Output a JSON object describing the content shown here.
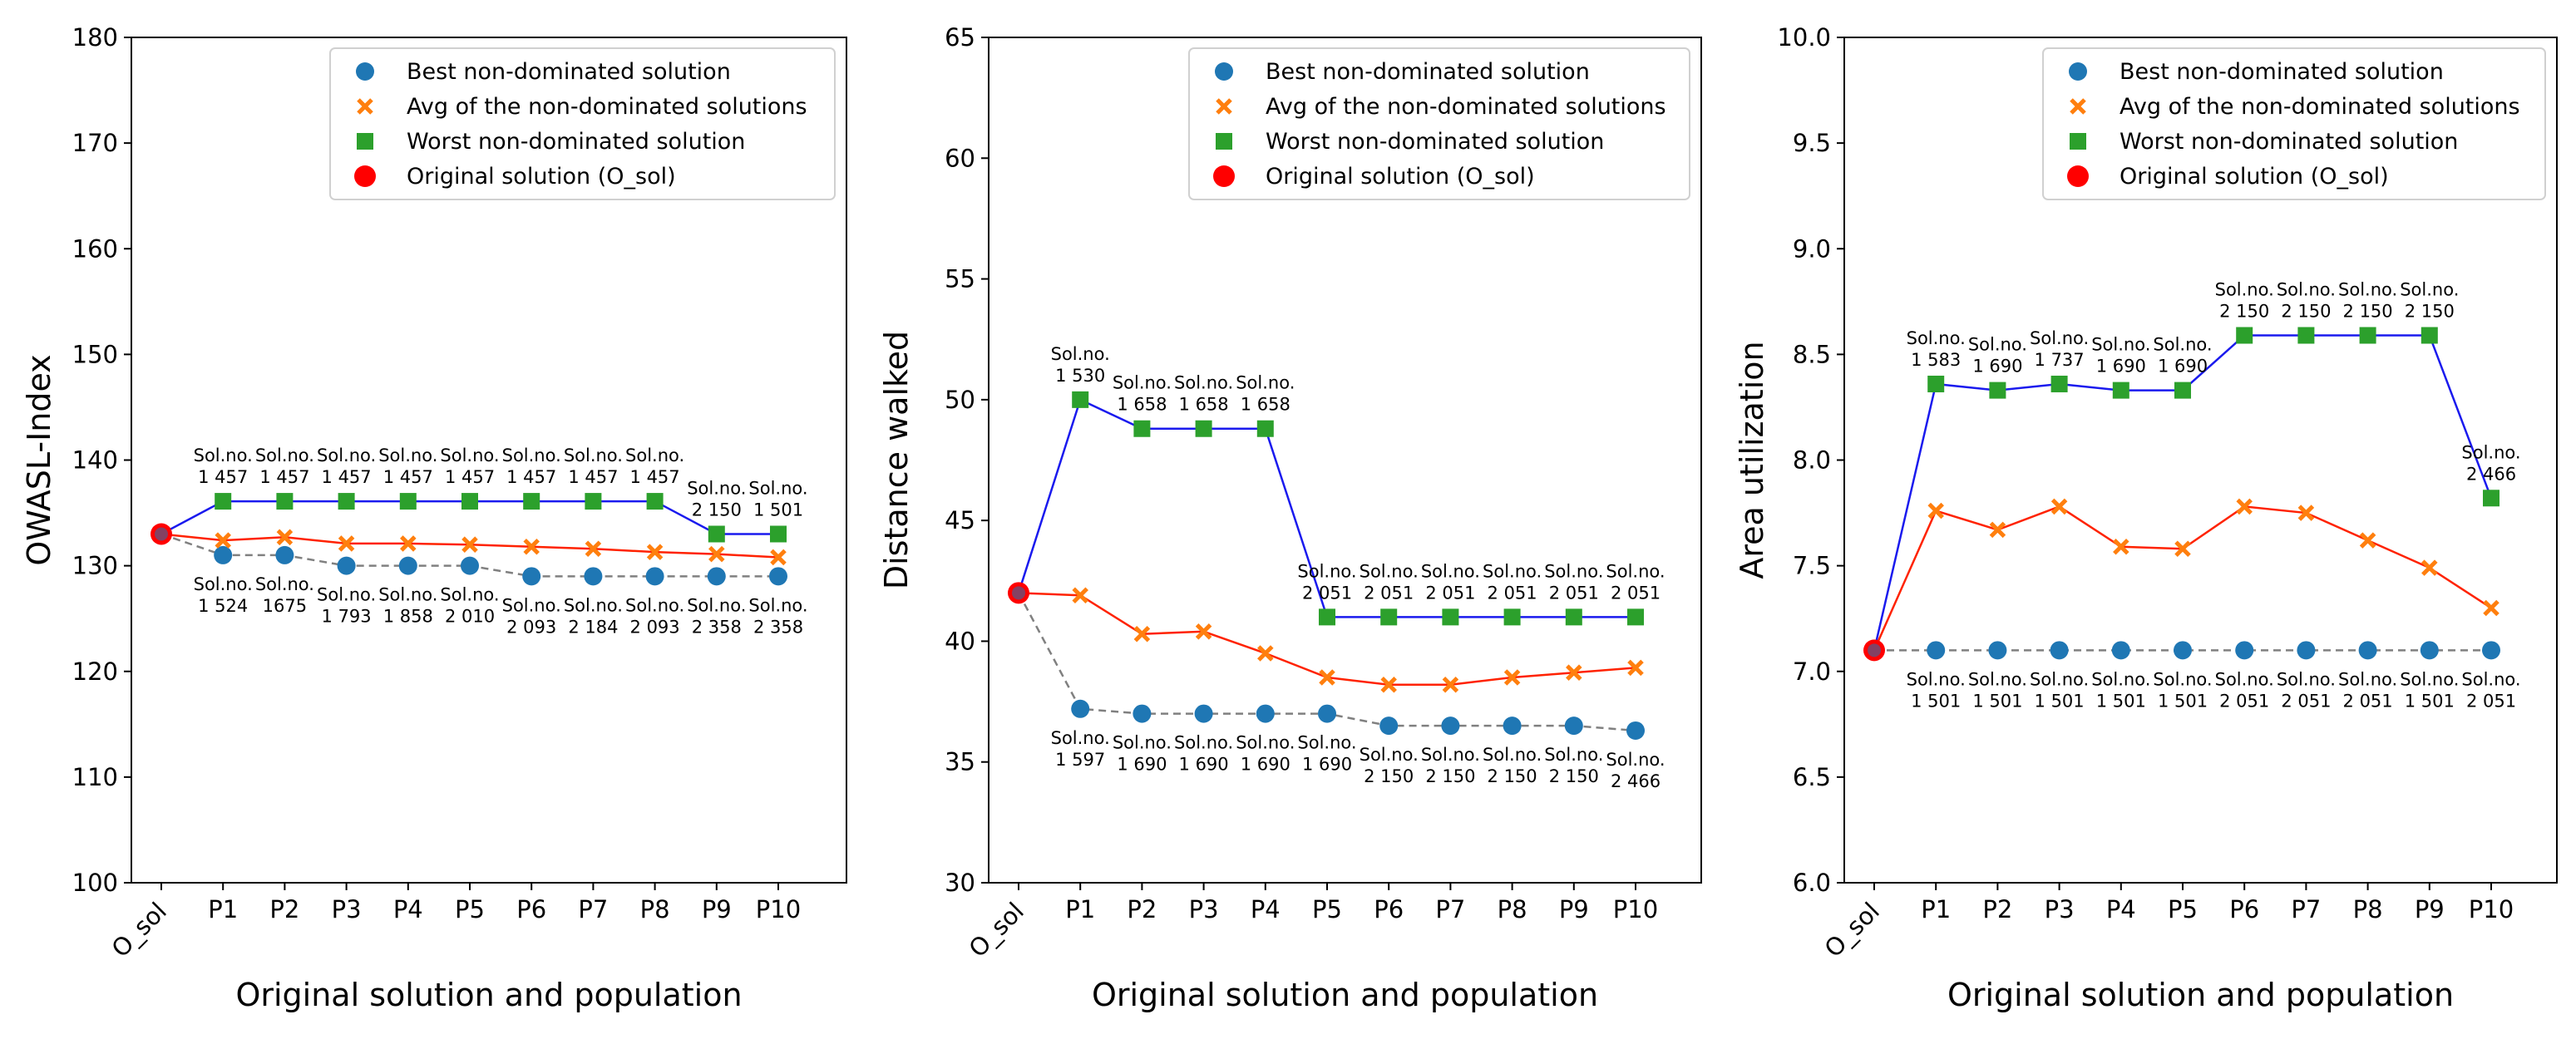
{
  "chart_data": [
    {
      "type": "line",
      "title": "",
      "xlabel": "Original solution and population",
      "ylabel": "OWASL-Index",
      "categories": [
        "O_sol",
        "P1",
        "P2",
        "P3",
        "P4",
        "P5",
        "P6",
        "P7",
        "P8",
        "P9",
        "P10"
      ],
      "ylim": [
        100,
        180
      ],
      "yticks": [
        "100",
        "110",
        "120",
        "130",
        "140",
        "150",
        "160",
        "170",
        "180"
      ],
      "grid": false,
      "legend_position": "top-right",
      "legend": [
        "Best non-dominated solution",
        "Avg of the non-dominated solutions",
        "Worst non-dominated solution",
        "Original solution (O_sol)"
      ],
      "original": 133,
      "series": [
        {
          "name": "Best non-dominated solution",
          "values": [
            133,
            131,
            131,
            130,
            130,
            130,
            129,
            129,
            129,
            129,
            129
          ],
          "color": "#1f77b4",
          "line": "#808080",
          "dashed": true,
          "marker": "circle"
        },
        {
          "name": "Avg of the non-dominated solutions",
          "values": [
            133,
            132.4,
            132.7,
            132.1,
            132.1,
            132,
            131.8,
            131.6,
            131.3,
            131.1,
            130.8
          ],
          "color": "#ff7f0e",
          "line": "#ff2200",
          "dashed": false,
          "marker": "x"
        },
        {
          "name": "Worst non-dominated solution",
          "values": [
            133,
            136.1,
            136.1,
            136.1,
            136.1,
            136.1,
            136.1,
            136.1,
            136.1,
            133,
            133
          ],
          "color": "#2ca02c",
          "line": "#1a1aee",
          "dashed": false,
          "marker": "square"
        }
      ],
      "annotations": {
        "worst": [
          null,
          {
            "lines": [
              "Sol.no.",
              "1 457"
            ]
          },
          {
            "lines": [
              "Sol.no.",
              "1 457"
            ]
          },
          {
            "lines": [
              "Sol.no.",
              "1 457"
            ]
          },
          {
            "lines": [
              "Sol.no.",
              "1 457"
            ]
          },
          {
            "lines": [
              "Sol.no.",
              "1 457"
            ]
          },
          {
            "lines": [
              "Sol.no.",
              "1 457"
            ]
          },
          {
            "lines": [
              "Sol.no.",
              "1 457"
            ]
          },
          {
            "lines": [
              "Sol.no.",
              "1 457"
            ]
          },
          {
            "lines": [
              "Sol.no.",
              "2 150"
            ]
          },
          {
            "lines": [
              "Sol.no.",
              "1 501"
            ]
          }
        ],
        "best": [
          null,
          {
            "lines": [
              "Sol.no.",
              "1 524"
            ]
          },
          {
            "lines": [
              "Sol.no.",
              "1675"
            ]
          },
          {
            "lines": [
              "Sol.no.",
              "1 793"
            ]
          },
          {
            "lines": [
              "Sol.no.",
              "1 858"
            ]
          },
          {
            "lines": [
              "Sol.no.",
              "2 010"
            ]
          },
          {
            "lines": [
              "Sol.no.",
              "2 093"
            ]
          },
          {
            "lines": [
              "Sol.no.",
              "2 184"
            ]
          },
          {
            "lines": [
              "Sol.no.",
              "2 093"
            ]
          },
          {
            "lines": [
              "Sol.no.",
              "2 358"
            ]
          },
          {
            "lines": [
              "Sol.no.",
              "2 358"
            ]
          }
        ]
      }
    },
    {
      "type": "line",
      "title": "",
      "xlabel": "Original solution and population",
      "ylabel": "Distance walked",
      "categories": [
        "O_sol",
        "P1",
        "P2",
        "P3",
        "P4",
        "P5",
        "P6",
        "P7",
        "P8",
        "P9",
        "P10"
      ],
      "ylim": [
        30,
        65
      ],
      "yticks": [
        "30",
        "35",
        "40",
        "45",
        "50",
        "55",
        "60",
        "65"
      ],
      "grid": false,
      "legend_position": "top-right",
      "legend": [
        "Best non-dominated solution",
        "Avg of the non-dominated solutions",
        "Worst non-dominated solution",
        "Original solution (O_sol)"
      ],
      "original": 42,
      "series": [
        {
          "name": "Best non-dominated solution",
          "values": [
            42,
            37.2,
            37,
            37,
            37,
            37,
            36.5,
            36.5,
            36.5,
            36.5,
            36.3
          ],
          "color": "#1f77b4",
          "line": "#808080",
          "dashed": true,
          "marker": "circle"
        },
        {
          "name": "Avg of the non-dominated solutions",
          "values": [
            42,
            41.9,
            40.3,
            40.4,
            39.5,
            38.5,
            38.2,
            38.2,
            38.5,
            38.7,
            38.9
          ],
          "color": "#ff7f0e",
          "line": "#ff2200",
          "dashed": false,
          "marker": "x"
        },
        {
          "name": "Worst non-dominated solution",
          "values": [
            42,
            50,
            48.8,
            48.8,
            48.8,
            41,
            41,
            41,
            41,
            41,
            41
          ],
          "color": "#2ca02c",
          "line": "#1a1aee",
          "dashed": false,
          "marker": "square"
        }
      ],
      "annotations": {
        "worst": [
          null,
          {
            "lines": [
              "Sol.no.",
              "1 530"
            ]
          },
          {
            "lines": [
              "Sol.no.",
              "1 658"
            ]
          },
          {
            "lines": [
              "Sol.no.",
              "1 658"
            ]
          },
          {
            "lines": [
              "Sol.no.",
              "1 658"
            ]
          },
          {
            "lines": [
              "Sol.no.",
              "2 051"
            ]
          },
          {
            "lines": [
              "Sol.no.",
              "2 051"
            ]
          },
          {
            "lines": [
              "Sol.no.",
              "2 051"
            ]
          },
          {
            "lines": [
              "Sol.no.",
              "2 051"
            ]
          },
          {
            "lines": [
              "Sol.no.",
              "2 051"
            ]
          },
          {
            "lines": [
              "Sol.no.",
              "2 051"
            ]
          }
        ],
        "best": [
          null,
          {
            "lines": [
              "Sol.no.",
              "1 597"
            ]
          },
          {
            "lines": [
              "Sol.no.",
              "1 690"
            ]
          },
          {
            "lines": [
              "Sol.no.",
              "1 690"
            ]
          },
          {
            "lines": [
              "Sol.no.",
              "1 690"
            ]
          },
          {
            "lines": [
              "Sol.no.",
              "1 690"
            ]
          },
          {
            "lines": [
              "Sol.no.",
              "2 150"
            ]
          },
          {
            "lines": [
              "Sol.no.",
              "2 150"
            ]
          },
          {
            "lines": [
              "Sol.no.",
              "2 150"
            ]
          },
          {
            "lines": [
              "Sol.no.",
              "2 150"
            ]
          },
          {
            "lines": [
              "Sol.no.",
              "2 466"
            ]
          }
        ]
      }
    },
    {
      "type": "line",
      "title": "",
      "xlabel": "Original solution and population",
      "ylabel": "Area utilization",
      "categories": [
        "O_sol",
        "P1",
        "P2",
        "P3",
        "P4",
        "P5",
        "P6",
        "P7",
        "P8",
        "P9",
        "P10"
      ],
      "ylim": [
        6.0,
        10.0
      ],
      "yticks": [
        "6.0",
        "6.5",
        "7.0",
        "7.5",
        "8.0",
        "8.5",
        "9.0",
        "9.5",
        "10.0"
      ],
      "grid": false,
      "legend_position": "top-right",
      "legend": [
        "Best non-dominated solution",
        "Avg of the non-dominated solutions",
        "Worst non-dominated solution",
        "Original solution (O_sol)"
      ],
      "original": 7.1,
      "series": [
        {
          "name": "Best non-dominated solution",
          "values": [
            7.1,
            7.1,
            7.1,
            7.1,
            7.1,
            7.1,
            7.1,
            7.1,
            7.1,
            7.1,
            7.1
          ],
          "color": "#1f77b4",
          "line": "#808080",
          "dashed": true,
          "marker": "circle"
        },
        {
          "name": "Avg of the non-dominated solutions",
          "values": [
            7.1,
            7.76,
            7.67,
            7.78,
            7.59,
            7.58,
            7.78,
            7.75,
            7.62,
            7.49,
            7.3
          ],
          "color": "#ff7f0e",
          "line": "#ff2200",
          "dashed": false,
          "marker": "x"
        },
        {
          "name": "Worst non-dominated solution",
          "values": [
            7.1,
            8.36,
            8.33,
            8.36,
            8.33,
            8.33,
            8.59,
            8.59,
            8.59,
            8.59,
            7.82
          ],
          "color": "#2ca02c",
          "line": "#1a1aee",
          "dashed": false,
          "marker": "square"
        }
      ],
      "annotations": {
        "worst": [
          null,
          {
            "lines": [
              "Sol.no.",
              "1 583"
            ]
          },
          {
            "lines": [
              "Sol.no.",
              "1 690"
            ]
          },
          {
            "lines": [
              "Sol.no.",
              "1 737"
            ]
          },
          {
            "lines": [
              "Sol.no.",
              "1 690"
            ]
          },
          {
            "lines": [
              "Sol.no.",
              "1 690"
            ]
          },
          {
            "lines": [
              "Sol.no.",
              "2 150"
            ]
          },
          {
            "lines": [
              "Sol.no.",
              "2 150"
            ]
          },
          {
            "lines": [
              "Sol.no.",
              "2 150"
            ]
          },
          {
            "lines": [
              "Sol.no.",
              "2 150"
            ]
          },
          {
            "lines": [
              "Sol.no.",
              "2 466"
            ]
          }
        ],
        "best": [
          null,
          {
            "lines": [
              "Sol.no.",
              "1 501"
            ]
          },
          {
            "lines": [
              "Sol.no.",
              "1 501"
            ]
          },
          {
            "lines": [
              "Sol.no.",
              "1 501"
            ]
          },
          {
            "lines": [
              "Sol.no.",
              "1 501"
            ]
          },
          {
            "lines": [
              "Sol.no.",
              "1 501"
            ]
          },
          {
            "lines": [
              "Sol.no.",
              "2 051"
            ]
          },
          {
            "lines": [
              "Sol.no.",
              "2 051"
            ]
          },
          {
            "lines": [
              "Sol.no.",
              "2 051"
            ]
          },
          {
            "lines": [
              "Sol.no.",
              "1 501"
            ]
          },
          {
            "lines": [
              "Sol.no.",
              "2 051"
            ]
          }
        ]
      }
    }
  ]
}
